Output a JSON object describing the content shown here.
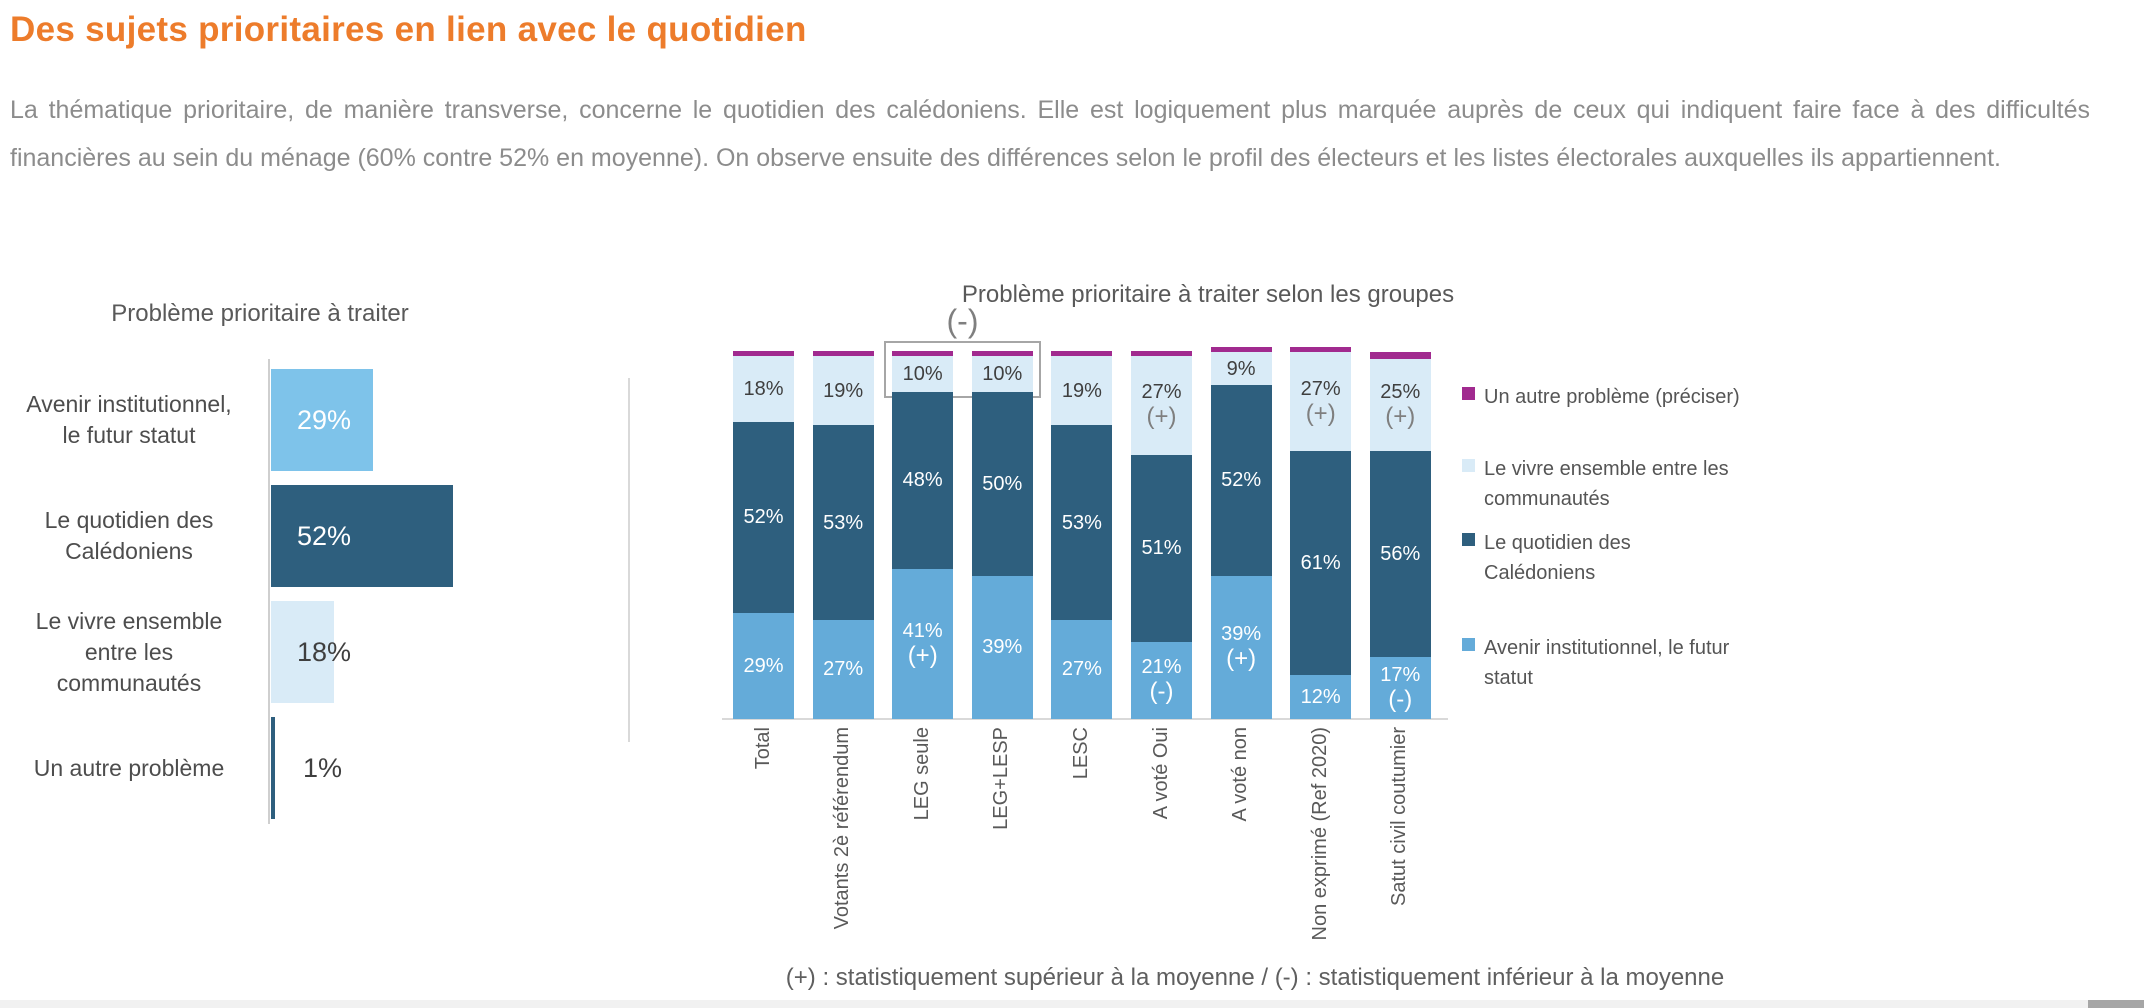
{
  "page": {
    "title": "Des sujets prioritaires en lien avec le quotidien",
    "paragraph": "La thématique prioritaire, de manière transverse, concerne le quotidien des calédoniens. Elle est logiquement plus marquée auprès de ceux qui indiquent faire face à des difficultés financières  au sein du ménage (60% contre 52% en moyenne). On observe ensuite des différences selon le profil des électeurs et les listes électorales auxquelles ils appartiennent.",
    "footnote": "(+) : statistiquement supérieur à la moyenne / (-) : statistiquement inférieur à la moyenne"
  },
  "colors": {
    "title_orange": "#ED7C2B",
    "avenir_left": "#7EC3EA",
    "avenir_right": "#64ABD9",
    "quotidien_dark_blue": "#2E5F7E",
    "vivre_light_blue": "#D9EBF7",
    "autre_purple": "#A12A8F",
    "text_gray": "#595959",
    "paragraph_gray": "#8C8C8C",
    "axis_gray": "#D9D9D9"
  },
  "chart_data": [
    {
      "type": "bar",
      "orientation": "horizontal",
      "title": "Problème prioritaire à traiter",
      "categories": [
        "Avenir institutionnel, le futur statut",
        "Le quotidien des Calédoniens",
        "Le vivre ensemble entre les communautés",
        "Un autre problème"
      ],
      "category_lines": [
        [
          "Avenir institutionnel,",
          "le futur statut"
        ],
        [
          "Le quotidien des",
          "Calédoniens"
        ],
        [
          "Le vivre ensemble",
          "entre les",
          "communautés"
        ],
        [
          "Un autre problème"
        ]
      ],
      "values": [
        29,
        52,
        18,
        1
      ],
      "value_labels": [
        "29%",
        "52%",
        "18%",
        "1%"
      ],
      "bar_colors": [
        "#7EC3EA",
        "#2E5F7E",
        "#D9EBF7",
        "#2E5F7E"
      ],
      "label_colors": [
        "#FFFFFF",
        "#FFFFFF",
        "#3F3F3F",
        "#3F3F3F"
      ],
      "xlim": [
        0,
        100
      ],
      "grid": false
    },
    {
      "type": "bar",
      "stacked": true,
      "title": "Problème prioritaire à traiter selon les groupes",
      "categories": [
        "Total",
        "Votants 2è référendum",
        "LEG seule",
        "LEG+LESP",
        "LESC",
        "A voté Oui",
        "A voté non",
        "Non exprimé (Ref 2020)",
        "Satut civil coutumier"
      ],
      "series": [
        {
          "name": "Avenir institutionnel, le futur statut",
          "color": "#64ABD9",
          "label_color": "#FFFFFF",
          "sign_color": "#FFFFFF",
          "values": [
            29,
            27,
            41,
            39,
            27,
            21,
            39,
            12,
            17
          ],
          "signs": [
            "",
            "",
            "(+)",
            "",
            "",
            "(-)",
            "(+)",
            "",
            "(-)"
          ]
        },
        {
          "name": "Le quotidien des Calédoniens",
          "color": "#2E5F7E",
          "label_color": "#FFFFFF",
          "sign_color": "#FFFFFF",
          "values": [
            52,
            53,
            48,
            50,
            53,
            51,
            52,
            61,
            56
          ],
          "signs": [
            "",
            "",
            "",
            "",
            "",
            "",
            "",
            "",
            ""
          ]
        },
        {
          "name": "Le vivre ensemble entre les communautés",
          "color": "#D9EBF7",
          "label_color": "#3F3F3F",
          "sign_color": "#7F7F7F",
          "values": [
            18,
            19,
            10,
            10,
            19,
            27,
            9,
            27,
            25
          ],
          "signs": [
            "",
            "",
            "",
            "",
            "",
            "(+)",
            "",
            "(+)",
            "(+)"
          ]
        },
        {
          "name": "Un autre problème  (préciser)",
          "color": "#A12A8F",
          "label_color": "",
          "sign_color": "",
          "values": [
            1,
            1,
            1,
            1,
            1,
            1,
            1,
            1,
            2
          ],
          "signs": [
            "",
            "",
            "",
            "",
            "",
            "",
            "",
            "",
            ""
          ],
          "show_labels": false
        }
      ],
      "annotation": {
        "text": "(-)",
        "targets": [
          "LEG seule",
          "LEG+LESP"
        ],
        "series": "Le vivre ensemble entre les communautés"
      },
      "legend_position": "right",
      "legend": [
        {
          "label_lines": [
            "Un autre problème  (préciser)"
          ],
          "color": "#A12A8F"
        },
        {
          "label_lines": [
            "Le vivre ensemble entre les",
            "communautés"
          ],
          "color": "#D9EBF7"
        },
        {
          "label_lines": [
            "Le quotidien des",
            "Calédoniens"
          ],
          "color": "#2E5F7E"
        },
        {
          "label_lines": [
            "Avenir institutionnel, le futur",
            "statut"
          ],
          "color": "#64ABD9"
        }
      ],
      "ylim": [
        0,
        100
      ],
      "grid": false
    }
  ]
}
